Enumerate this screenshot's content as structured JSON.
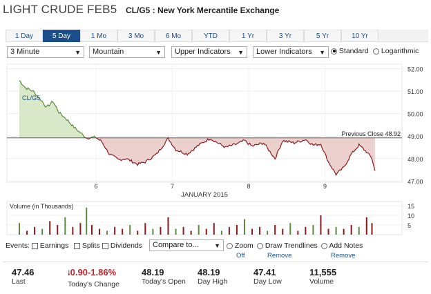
{
  "header": {
    "title": "LIGHT CRUDE FEB5",
    "subtitle": "CL/G5 : New York Mercantile Exchange"
  },
  "range_tabs": [
    "1 Day",
    "5 Day",
    "1 Mo",
    "3 Mo",
    "6 Mo",
    "YTD",
    "1 Yr",
    "3 Yr",
    "5 Yr",
    "10 Yr"
  ],
  "active_tab": "5 Day",
  "controls": {
    "interval": "3 Minute",
    "chart_style": "Mountain",
    "upper_indicators": "Upper Indicators",
    "lower_indicators": "Lower Indicators",
    "scale_standard": "Standard",
    "scale_log": "Logarithmic"
  },
  "chart_data": [
    {
      "type": "area",
      "title": "",
      "series": [
        {
          "name": "CL/G5",
          "color_above": "#5b8a3a",
          "color_below": "#8b1a1a"
        }
      ],
      "x_axis_title": "JANUARY 2015",
      "x_ticks": [
        "6",
        "7",
        "8",
        "9"
      ],
      "y_ticks": [
        52.0,
        51.0,
        50.0,
        49.0,
        48.0,
        47.0
      ],
      "ylim": [
        46.95,
        52.2
      ],
      "reference_line": {
        "label": "Previous Close 48.92",
        "value": 48.92
      },
      "key_points": [
        {
          "x": 0.0,
          "y": 51.48
        },
        {
          "x": 0.08,
          "y": 51.15
        },
        {
          "x": 0.18,
          "y": 51.0
        },
        {
          "x": 0.28,
          "y": 50.62
        },
        {
          "x": 0.36,
          "y": 50.28
        },
        {
          "x": 0.44,
          "y": 50.55
        },
        {
          "x": 0.52,
          "y": 50.05
        },
        {
          "x": 0.62,
          "y": 49.75
        },
        {
          "x": 0.7,
          "y": 49.45
        },
        {
          "x": 0.78,
          "y": 49.2
        },
        {
          "x": 0.88,
          "y": 48.92
        },
        {
          "x": 1.0,
          "y": 48.95
        },
        {
          "x": 1.08,
          "y": 48.75
        },
        {
          "x": 1.18,
          "y": 48.2
        },
        {
          "x": 1.3,
          "y": 47.95
        },
        {
          "x": 1.4,
          "y": 48.0
        },
        {
          "x": 1.55,
          "y": 47.75
        },
        {
          "x": 1.65,
          "y": 47.85
        },
        {
          "x": 1.8,
          "y": 48.2
        },
        {
          "x": 1.95,
          "y": 48.9
        },
        {
          "x": 2.05,
          "y": 48.4
        },
        {
          "x": 2.2,
          "y": 48.2
        },
        {
          "x": 2.35,
          "y": 48.6
        },
        {
          "x": 2.5,
          "y": 48.9
        },
        {
          "x": 2.7,
          "y": 48.5
        },
        {
          "x": 2.85,
          "y": 48.65
        },
        {
          "x": 2.95,
          "y": 48.8
        },
        {
          "x": 3.05,
          "y": 48.55
        },
        {
          "x": 3.2,
          "y": 48.7
        },
        {
          "x": 3.35,
          "y": 48.0
        },
        {
          "x": 3.45,
          "y": 48.8
        },
        {
          "x": 3.6,
          "y": 48.7
        },
        {
          "x": 3.75,
          "y": 48.85
        },
        {
          "x": 3.85,
          "y": 48.6
        },
        {
          "x": 3.95,
          "y": 48.65
        },
        {
          "x": 4.05,
          "y": 47.85
        },
        {
          "x": 4.15,
          "y": 47.3
        },
        {
          "x": 4.25,
          "y": 47.6
        },
        {
          "x": 4.35,
          "y": 48.2
        },
        {
          "x": 4.45,
          "y": 48.6
        },
        {
          "x": 4.55,
          "y": 48.3
        },
        {
          "x": 4.62,
          "y": 48.0
        },
        {
          "x": 4.66,
          "y": 47.46
        }
      ]
    },
    {
      "type": "bar",
      "title": "Volume (in Thousands)",
      "y_ticks": [
        15,
        10,
        5
      ],
      "ylim": [
        0,
        15
      ],
      "bars": [
        [
          0.0,
          6
        ],
        [
          0.1,
          2
        ],
        [
          0.2,
          4
        ],
        [
          0.3,
          3
        ],
        [
          0.4,
          7
        ],
        [
          0.5,
          5
        ],
        [
          0.6,
          9
        ],
        [
          0.7,
          4
        ],
        [
          0.8,
          6
        ],
        [
          0.88,
          14
        ],
        [
          0.95,
          5
        ],
        [
          1.05,
          3
        ],
        [
          1.15,
          2
        ],
        [
          1.25,
          4
        ],
        [
          1.35,
          3
        ],
        [
          1.45,
          5
        ],
        [
          1.55,
          2
        ],
        [
          1.65,
          6
        ],
        [
          1.75,
          3
        ],
        [
          1.85,
          4
        ],
        [
          1.95,
          9
        ],
        [
          2.05,
          3
        ],
        [
          2.15,
          4
        ],
        [
          2.25,
          2
        ],
        [
          2.35,
          5
        ],
        [
          2.45,
          3
        ],
        [
          2.55,
          6
        ],
        [
          2.65,
          2
        ],
        [
          2.75,
          4
        ],
        [
          2.85,
          5
        ],
        [
          2.95,
          8
        ],
        [
          3.05,
          3
        ],
        [
          3.15,
          4
        ],
        [
          3.25,
          2
        ],
        [
          3.35,
          5
        ],
        [
          3.45,
          3
        ],
        [
          3.55,
          6
        ],
        [
          3.65,
          2
        ],
        [
          3.75,
          4
        ],
        [
          3.85,
          5
        ],
        [
          3.95,
          10
        ],
        [
          4.05,
          3
        ],
        [
          4.15,
          4
        ],
        [
          4.25,
          3
        ],
        [
          4.35,
          5
        ],
        [
          4.45,
          4
        ],
        [
          4.55,
          9
        ],
        [
          4.62,
          6
        ]
      ]
    }
  ],
  "events": {
    "label": "Events:",
    "earnings": "Earnings",
    "splits": "Splits",
    "dividends": "Dividends",
    "compare": "Compare to...",
    "zoom": "Zoom",
    "zoom_state": "Off",
    "trendlines": "Draw Trendlines",
    "trendlines_action": "Remove",
    "notes": "Add Notes",
    "notes_action": "Remove"
  },
  "stats": [
    {
      "value": "47.46",
      "label": "Last"
    },
    {
      "value": "0.90",
      "value2": "-1.86%",
      "label": "Today's Change"
    },
    {
      "value": "48.19",
      "label": "Today's Open"
    },
    {
      "value": "48.19",
      "label": "Day High"
    },
    {
      "value": "47.41",
      "label": "Day Low"
    },
    {
      "value": "11,555",
      "label": "Volume"
    }
  ]
}
